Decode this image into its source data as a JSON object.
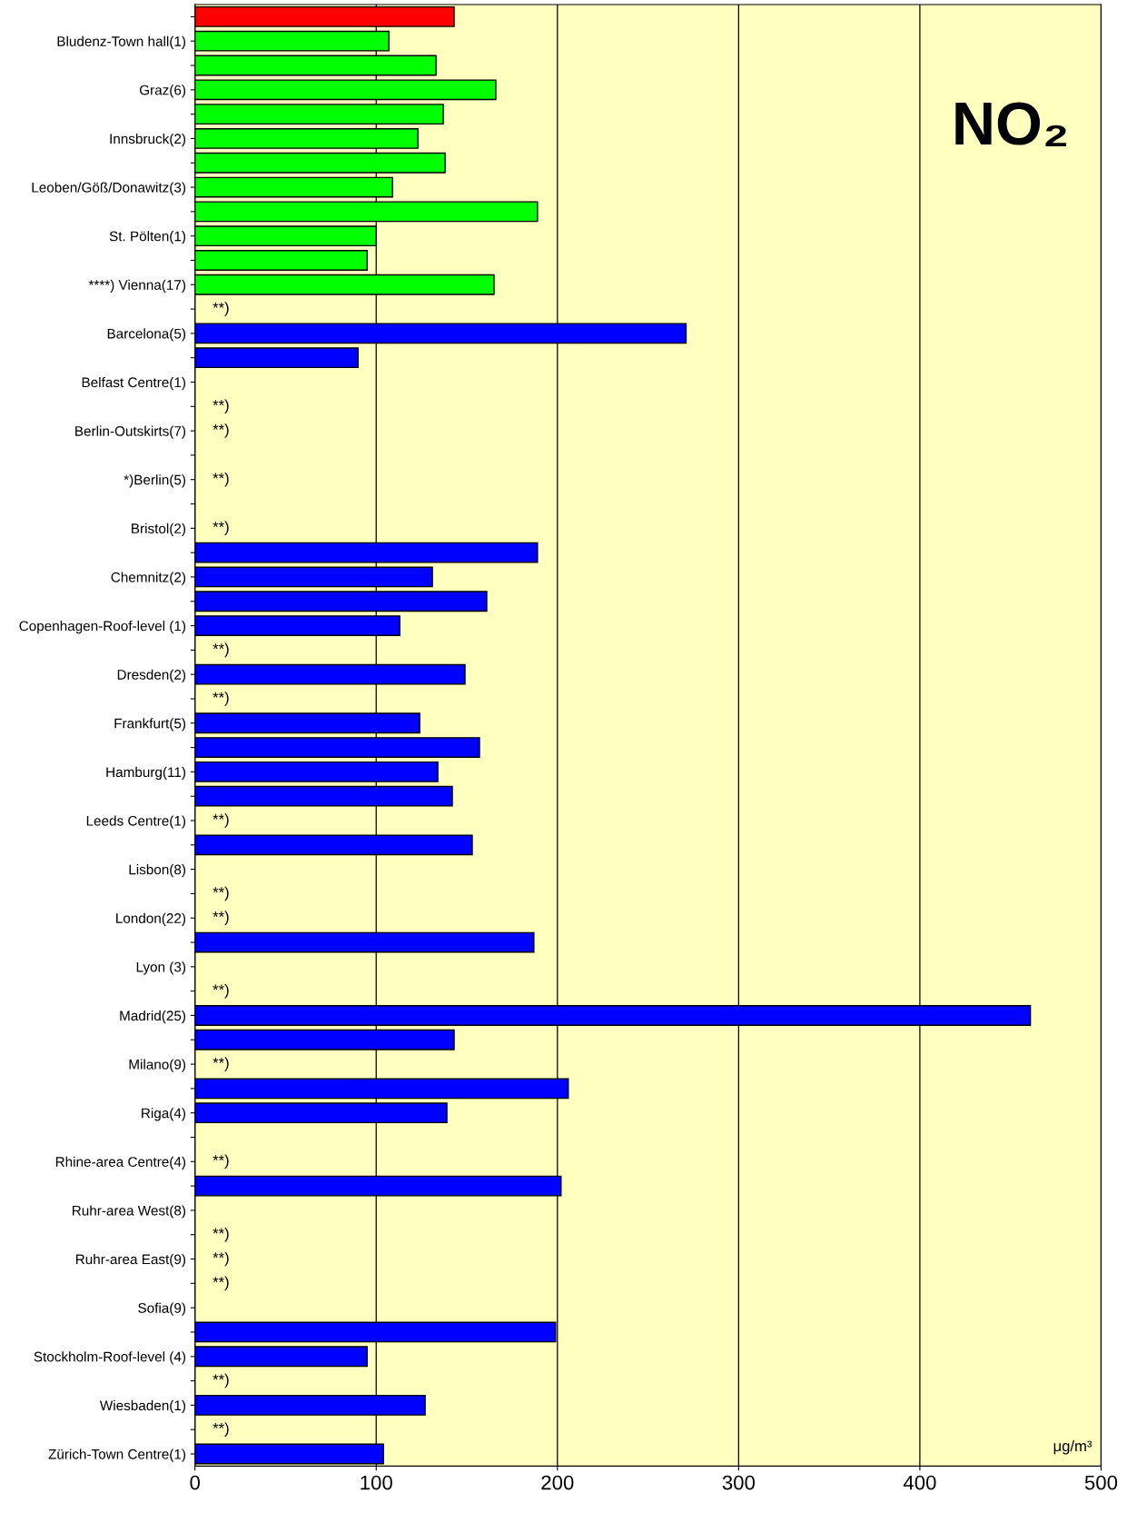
{
  "chart_data": {
    "type": "bar",
    "orientation": "horizontal",
    "categories": [
      null,
      "Bludenz-Town hall(1)",
      null,
      "Graz(6)",
      null,
      "Innsbruck(2)",
      null,
      "Leoben/Göß/Donawitz(3)",
      null,
      "St. Pölten(1)",
      null,
      "****) Vienna(17)",
      null,
      "Barcelona(5)",
      null,
      "Belfast Centre(1)",
      null,
      "Berlin-Outskirts(7)",
      null,
      "*)Berlin(5)",
      null,
      "Bristol(2)",
      null,
      "Chemnitz(2)",
      null,
      "Copenhagen-Roof-level (1)",
      null,
      "Dresden(2)",
      null,
      "Frankfurt(5)",
      null,
      "Hamburg(11)",
      null,
      "Leeds Centre(1)",
      null,
      "Lisbon(8)",
      null,
      "London(22)",
      null,
      "Lyon (3)",
      null,
      "Madrid(25)",
      null,
      "Milano(9)",
      null,
      "Riga(4)",
      null,
      "Rhine-area Centre(4)",
      null,
      "Ruhr-area West(8)",
      null,
      "Ruhr-area East(9)",
      null,
      "Sofia(9)",
      null,
      "Stockholm-Roof-level (4)",
      null,
      "Wiesbaden(1)",
      null,
      "Zürich-Town Centre(1)"
    ],
    "values": [
      143,
      107,
      133,
      166,
      137,
      123,
      138,
      109,
      189,
      100,
      95,
      165,
      null,
      271,
      90,
      null,
      null,
      null,
      null,
      null,
      null,
      null,
      189,
      131,
      161,
      113,
      null,
      149,
      null,
      124,
      157,
      134,
      142,
      null,
      153,
      null,
      null,
      null,
      187,
      null,
      null,
      461,
      143,
      null,
      206,
      139,
      null,
      null,
      202,
      null,
      null,
      null,
      null,
      null,
      199,
      95,
      null,
      127,
      null,
      104
    ],
    "value_labels": [
      null,
      null,
      null,
      null,
      null,
      null,
      null,
      null,
      null,
      null,
      null,
      null,
      "**)",
      null,
      null,
      null,
      "**)",
      "**)",
      null,
      "**)",
      null,
      "**)",
      null,
      null,
      null,
      null,
      "**)",
      null,
      "**)",
      null,
      null,
      null,
      null,
      "**)",
      null,
      null,
      "**)",
      "**)",
      null,
      null,
      "**)",
      null,
      null,
      "**)",
      null,
      null,
      null,
      "**)",
      null,
      null,
      "**)",
      "**)",
      "**)",
      null,
      null,
      null,
      "**)",
      null,
      "**)",
      null
    ],
    "colors": [
      "#ff0000",
      "#00ff00",
      "#00ff00",
      "#00ff00",
      "#00ff00",
      "#00ff00",
      "#00ff00",
      "#00ff00",
      "#00ff00",
      "#00ff00",
      "#00ff00",
      "#00ff00",
      "#00ff00",
      "#0000ff",
      "#0000ff",
      "#0000ff",
      "#0000ff",
      "#0000ff",
      "#0000ff",
      "#0000ff",
      "#0000ff",
      "#0000ff",
      "#0000ff",
      "#0000ff",
      "#0000ff",
      "#0000ff",
      "#0000ff",
      "#0000ff",
      "#0000ff",
      "#0000ff",
      "#0000ff",
      "#0000ff",
      "#0000ff",
      "#0000ff",
      "#0000ff",
      "#0000ff",
      "#0000ff",
      "#0000ff",
      "#0000ff",
      "#0000ff",
      "#0000ff",
      "#0000ff",
      "#0000ff",
      "#0000ff",
      "#0000ff",
      "#0000ff",
      "#0000ff",
      "#0000ff",
      "#0000ff",
      "#0000ff",
      "#0000ff",
      "#0000ff",
      "#0000ff",
      "#0000ff",
      "#0000ff",
      "#0000ff",
      "#0000ff",
      "#0000ff",
      "#0000ff",
      "#0000ff"
    ],
    "xlim": [
      0,
      500
    ],
    "xticks": [
      0,
      100,
      200,
      300,
      400,
      500
    ],
    "grid": "x",
    "annotations": [
      "NO₂",
      "μg/m³"
    ]
  }
}
